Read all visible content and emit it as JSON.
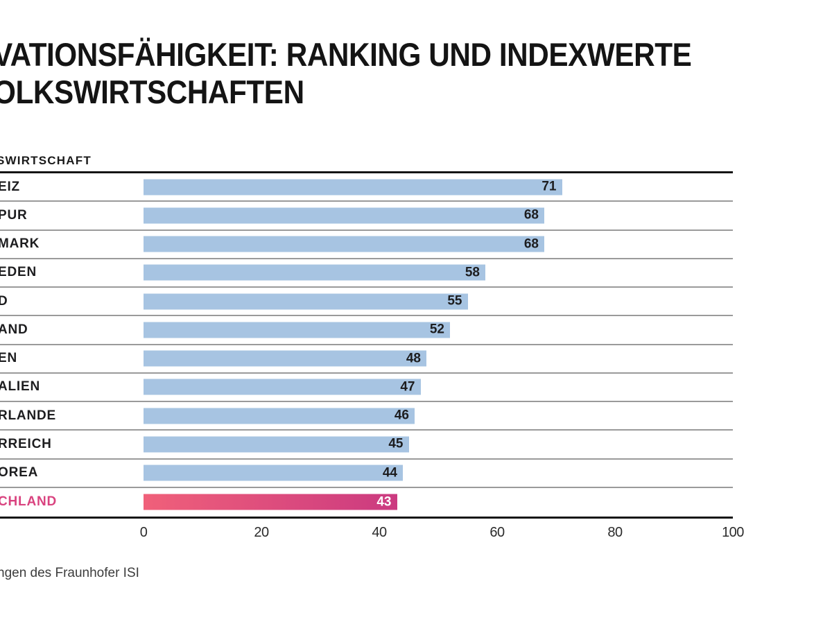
{
  "title": {
    "line1": "VATIONSFÄHIGKEIT: RANKING UND INDEXWERTE",
    "line2": "OLKSWIRTSCHAFTEN"
  },
  "column_header": "SWIRTSCHAFT",
  "footer": {
    "source": "ngen des Fraunhofer ISI"
  },
  "chart_data": {
    "type": "bar",
    "orientation": "horizontal",
    "title": "VATIONSFÄHIGKEIT: RANKING UND INDEXWERTE OLKSWIRTSCHAFTEN",
    "column_header": "SWIRTSCHAFT",
    "categories": [
      "EIZ",
      "PUR",
      "MARK",
      "EDEN",
      "D",
      "AND",
      "EN",
      "ALIEN",
      "RLANDE",
      "RREICH",
      "OREA",
      "CHLAND"
    ],
    "values": [
      71,
      68,
      68,
      58,
      55,
      52,
      48,
      47,
      46,
      45,
      44,
      43
    ],
    "xlim": [
      0,
      100
    ],
    "x_ticks": [
      0,
      20,
      40,
      60,
      80,
      100
    ],
    "highlight_index": 11,
    "bar_color": "#a7c4e2",
    "highlight_gradient": [
      "#f0607a",
      "#cb3a80"
    ],
    "highlight_label_color": "#d9437f",
    "value_label_color": "#1d1d1f",
    "highlight_value_label_color": "#ffffff",
    "grid": "horizontal-row-separators",
    "legend": "none",
    "source": "ngen des Fraunhofer ISI"
  }
}
